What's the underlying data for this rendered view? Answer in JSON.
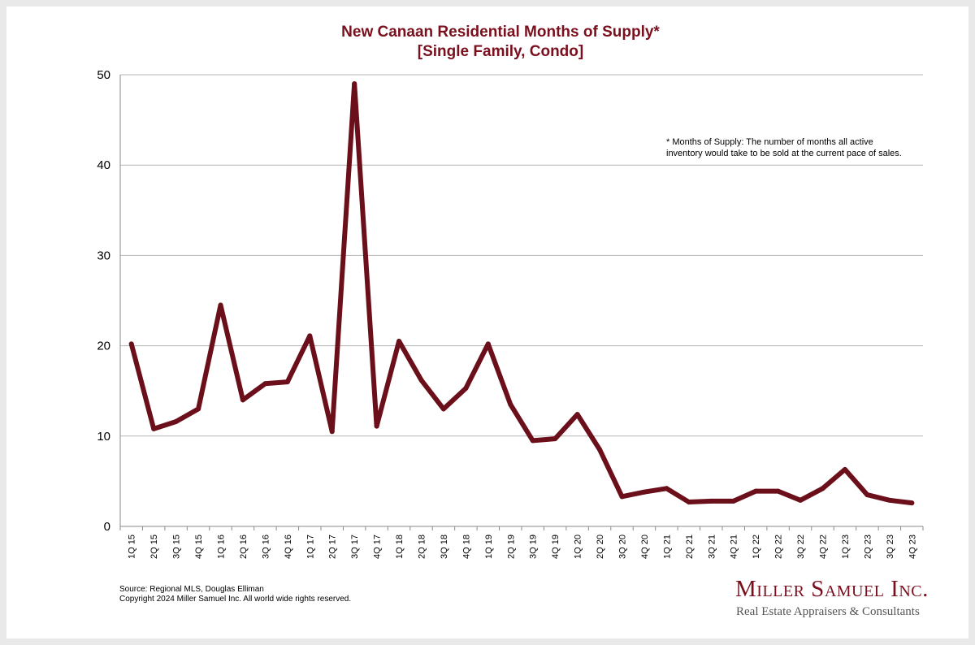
{
  "chart_data": {
    "type": "line",
    "title_line1": "New Canaan Residential Months of Supply*",
    "title_line2": "[Single Family, Condo]",
    "xlabel": "",
    "ylabel": "",
    "ylim": [
      0,
      50
    ],
    "yticks": [
      0,
      10,
      20,
      30,
      40,
      50
    ],
    "grid": true,
    "line_color": "#6b0f1a",
    "categories": [
      "1Q 15",
      "2Q 15",
      "3Q 15",
      "4Q 15",
      "1Q 16",
      "2Q 16",
      "3Q 16",
      "4Q 16",
      "1Q 17",
      "2Q 17",
      "3Q 17",
      "4Q 17",
      "1Q 18",
      "2Q 18",
      "3Q 18",
      "4Q 18",
      "1Q 19",
      "2Q 19",
      "3Q 19",
      "4Q 19",
      "1Q 20",
      "2Q 20",
      "3Q 20",
      "4Q 20",
      "1Q 21",
      "2Q 21",
      "3Q 21",
      "4Q 21",
      "1Q 22",
      "2Q 22",
      "3Q 22",
      "4Q 22",
      "1Q 23",
      "2Q 23",
      "3Q 23",
      "4Q 23"
    ],
    "values": [
      20.2,
      10.8,
      11.6,
      13.0,
      24.5,
      14.0,
      15.8,
      16.0,
      21.1,
      10.5,
      49.0,
      11.1,
      20.5,
      16.2,
      13.0,
      15.3,
      20.2,
      13.5,
      9.5,
      9.7,
      12.4,
      8.5,
      3.3,
      3.8,
      4.2,
      2.7,
      2.8,
      2.8,
      3.9,
      3.9,
      2.9,
      4.2,
      6.3,
      3.5,
      2.9,
      2.6
    ]
  },
  "footnote_line1": "* Months of Supply: The number of months all active",
  "footnote_line2": "inventory would take to be sold at the current pace of sales.",
  "source_line1": "Source: Regional MLS, Douglas Elliman",
  "source_line2": "Copyright 2024 Miller Samuel Inc.  All world wide rights reserved.",
  "brand": {
    "name": "Miller Samuel Inc.",
    "tagline": "Real Estate Appraisers & Consultants"
  },
  "colors": {
    "title": "#7a0f1d",
    "line": "#6b0f1a",
    "grid": "#b5b5b5"
  }
}
